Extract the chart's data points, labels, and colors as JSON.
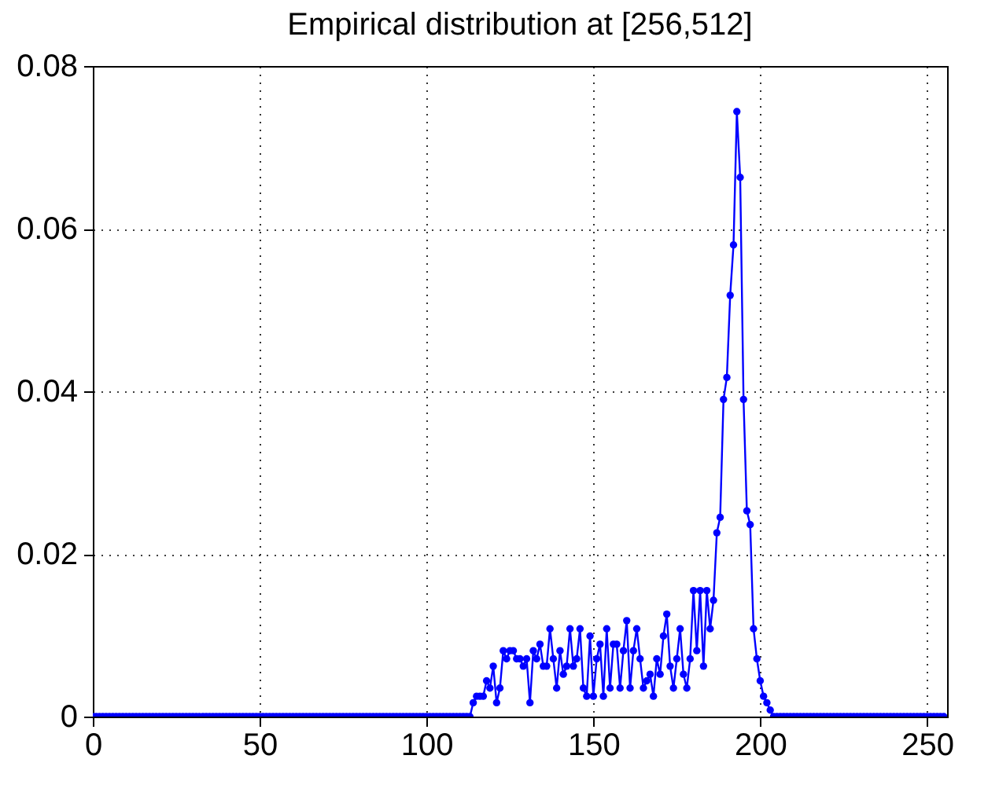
{
  "chart_data": {
    "type": "line",
    "title": "Empirical distribution at [256,512]",
    "x": [
      0,
      1,
      2,
      3,
      4,
      5,
      6,
      7,
      8,
      9,
      10,
      11,
      12,
      13,
      14,
      15,
      16,
      17,
      18,
      19,
      20,
      21,
      22,
      23,
      24,
      25,
      26,
      27,
      28,
      29,
      30,
      31,
      32,
      33,
      34,
      35,
      36,
      37,
      38,
      39,
      40,
      41,
      42,
      43,
      44,
      45,
      46,
      47,
      48,
      49,
      50,
      51,
      52,
      53,
      54,
      55,
      56,
      57,
      58,
      59,
      60,
      61,
      62,
      63,
      64,
      65,
      66,
      67,
      68,
      69,
      70,
      71,
      72,
      73,
      74,
      75,
      76,
      77,
      78,
      79,
      80,
      81,
      82,
      83,
      84,
      85,
      86,
      87,
      88,
      89,
      90,
      91,
      92,
      93,
      94,
      95,
      96,
      97,
      98,
      99,
      100,
      101,
      102,
      103,
      104,
      105,
      106,
      107,
      108,
      109,
      110,
      111,
      112,
      113,
      114,
      115,
      116,
      117,
      118,
      119,
      120,
      121,
      122,
      123,
      124,
      125,
      126,
      127,
      128,
      129,
      130,
      131,
      132,
      133,
      134,
      135,
      136,
      137,
      138,
      139,
      140,
      141,
      142,
      143,
      144,
      145,
      146,
      147,
      148,
      149,
      150,
      151,
      152,
      153,
      154,
      155,
      156,
      157,
      158,
      159,
      160,
      161,
      162,
      163,
      164,
      165,
      166,
      167,
      168,
      169,
      170,
      171,
      172,
      173,
      174,
      175,
      176,
      177,
      178,
      179,
      180,
      181,
      182,
      183,
      184,
      185,
      186,
      187,
      188,
      189,
      190,
      191,
      192,
      193,
      194,
      195,
      196,
      197,
      198,
      199,
      200,
      201,
      202,
      203,
      204,
      205,
      206,
      207,
      208,
      209,
      210,
      211,
      212,
      213,
      214,
      215,
      216,
      217,
      218,
      219,
      220,
      221,
      222,
      223,
      224,
      225,
      226,
      227,
      228,
      229,
      230,
      231,
      232,
      233,
      234,
      235,
      236,
      237,
      238,
      239,
      240,
      241,
      242,
      243,
      244,
      245,
      246,
      247,
      248,
      249,
      250,
      251,
      252,
      253,
      254,
      255
    ],
    "series": [
      {
        "color": "#0000ff",
        "values": [
          0,
          0,
          0,
          0,
          0,
          0,
          0,
          0,
          0,
          0,
          0,
          0,
          0,
          0,
          0,
          0,
          0,
          0,
          0,
          0,
          0,
          0,
          0,
          0,
          0,
          0,
          0,
          0,
          0,
          0,
          0,
          0,
          0,
          0,
          0,
          0,
          0,
          0,
          0,
          0,
          0,
          0,
          0,
          0,
          0,
          0,
          0,
          0,
          0,
          0,
          0,
          0,
          0,
          0,
          0,
          0,
          0,
          0,
          0,
          0,
          0,
          0,
          0,
          0,
          0,
          0,
          0,
          0,
          0,
          0,
          0,
          0,
          0,
          0,
          0,
          0,
          0,
          0,
          0,
          0,
          0,
          0,
          0,
          0,
          0,
          0,
          0,
          0,
          0,
          0,
          0,
          0,
          0,
          0,
          0,
          0,
          0,
          0,
          0,
          0,
          0,
          0,
          0,
          0,
          0,
          0,
          0,
          0,
          0,
          0,
          0,
          0,
          0,
          0,
          0.0017,
          0.0025,
          0.0025,
          0.0025,
          0.0044,
          0.0035,
          0.0062,
          0.0017,
          0.0035,
          0.0081,
          0.0071,
          0.0081,
          0.0081,
          0.0071,
          0.0071,
          0.0062,
          0.0071,
          0.0017,
          0.0081,
          0.0071,
          0.0089,
          0.0062,
          0.0062,
          0.0108,
          0.0071,
          0.0035,
          0.0081,
          0.0052,
          0.0062,
          0.0108,
          0.0062,
          0.0071,
          0.0108,
          0.0035,
          0.0025,
          0.0099,
          0.0025,
          0.0071,
          0.0089,
          0.0025,
          0.0108,
          0.0035,
          0.0089,
          0.0089,
          0.0035,
          0.0081,
          0.0118,
          0.0035,
          0.0081,
          0.0108,
          0.0071,
          0.0035,
          0.0044,
          0.0052,
          0.0025,
          0.0071,
          0.0052,
          0.0099,
          0.0126,
          0.0062,
          0.0035,
          0.0071,
          0.0108,
          0.0052,
          0.0035,
          0.0071,
          0.0155,
          0.0081,
          0.0155,
          0.0062,
          0.0155,
          0.0108,
          0.0143,
          0.0226,
          0.0245,
          0.039,
          0.0417,
          0.0518,
          0.058,
          0.0744,
          0.0663,
          0.039,
          0.0253,
          0.0236,
          0.0108,
          0.0071,
          0.0044,
          0.0025,
          0.0017,
          0.0008,
          0,
          0,
          0,
          0,
          0,
          0,
          0,
          0,
          0,
          0,
          0,
          0,
          0,
          0,
          0,
          0,
          0,
          0,
          0,
          0,
          0,
          0,
          0,
          0,
          0,
          0,
          0,
          0,
          0,
          0,
          0,
          0,
          0,
          0,
          0,
          0,
          0,
          0,
          0,
          0,
          0,
          0,
          0,
          0,
          0,
          0,
          0,
          0,
          0,
          0,
          0,
          0
        ]
      }
    ],
    "xlim": [
      0,
      256
    ],
    "xticks": [
      0,
      50,
      100,
      150,
      200,
      250
    ],
    "ylim": [
      0,
      0.08
    ],
    "yticks": [
      0,
      0.02,
      0.04,
      0.06,
      0.08
    ],
    "grid": true,
    "marker": "circle",
    "line_style": "solid"
  }
}
